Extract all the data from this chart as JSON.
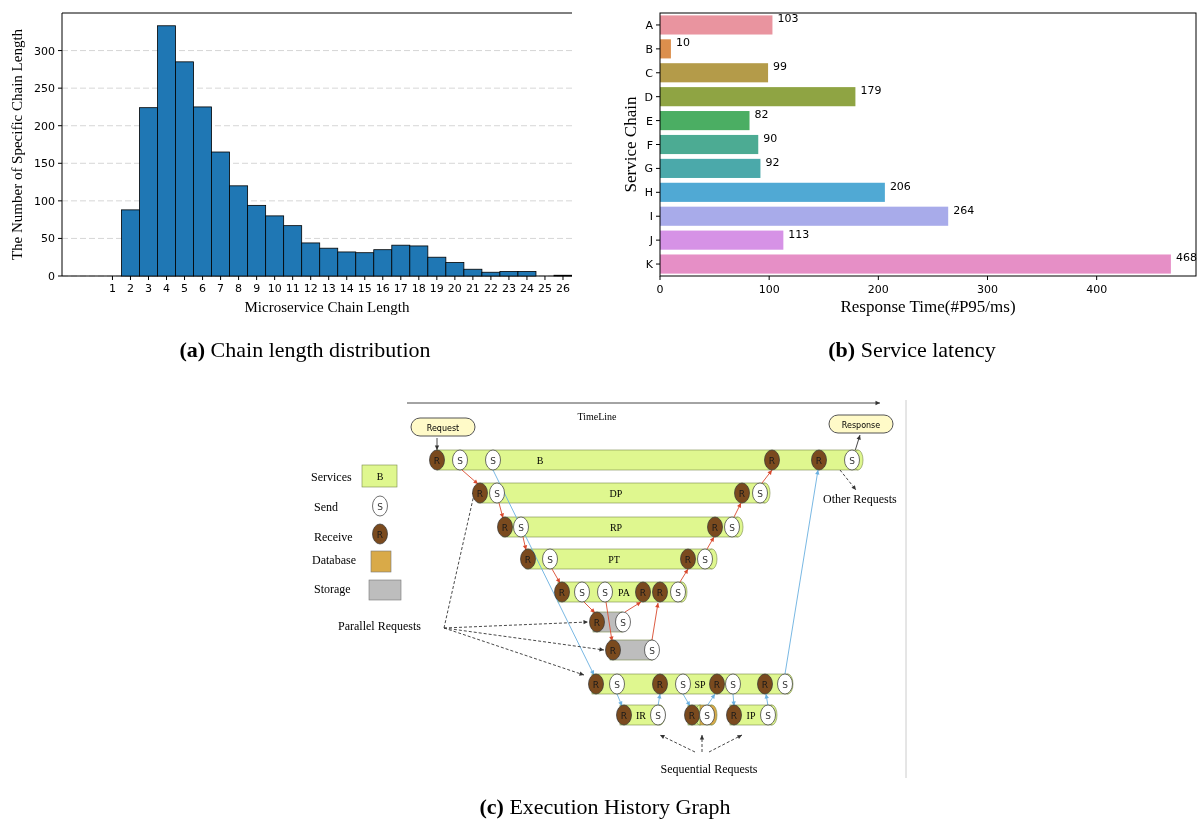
{
  "chart_data": [
    {
      "type": "histogram",
      "title": "(a) Chain length distribution",
      "xlabel": "Microservice Chain Length",
      "ylabel": "The Number of Specific Chain Length",
      "bins": [
        -0.5,
        0.5,
        1.5,
        2.5,
        3.5,
        4.5,
        5.5,
        6.5,
        7.5,
        8.5,
        9.5,
        10.5,
        11.5,
        12.5,
        13.5,
        14.5,
        15.5,
        16.5,
        17.5,
        18.5,
        19.5,
        20.5,
        21.5,
        22.5,
        23.5,
        24.5,
        25.5,
        26.5
      ],
      "values": [
        0,
        0,
        88,
        224,
        333,
        285,
        225,
        165,
        120,
        94,
        80,
        67,
        44,
        37,
        32,
        31,
        35,
        41,
        40,
        25,
        18,
        9,
        5,
        6,
        6,
        0,
        1
      ],
      "color": "#1f77b4",
      "xlim": [
        -1.8,
        26.5
      ],
      "ylim": [
        0,
        350
      ],
      "xticks": [
        1,
        2,
        3,
        4,
        5,
        6,
        7,
        8,
        9,
        10,
        11,
        12,
        13,
        14,
        15,
        16,
        17,
        18,
        19,
        20,
        21,
        22,
        23,
        24,
        25,
        26
      ],
      "yticks": [
        0,
        50,
        100,
        150,
        200,
        250,
        300
      ],
      "grid": "y"
    },
    {
      "type": "bar",
      "orientation": "horizontal",
      "title": "(b) Service latency",
      "xlabel": "Response Time(#P95/ms)",
      "ylabel": "Service Chain",
      "categories": [
        "A",
        "B",
        "C",
        "D",
        "E",
        "F",
        "G",
        "H",
        "I",
        "J",
        "K"
      ],
      "values": [
        103,
        10,
        99,
        179,
        82,
        90,
        92,
        206,
        264,
        113,
        468
      ],
      "colors": [
        "#e9949f",
        "#dc8f4d",
        "#b49b49",
        "#8fa443",
        "#4bae63",
        "#4cab93",
        "#4ba9aa",
        "#50a9d4",
        "#a8abea",
        "#d692e6",
        "#e68fc6"
      ],
      "xlim": [
        0,
        491
      ],
      "xticks": [
        0,
        100,
        200,
        300,
        400
      ],
      "data_labels": true
    },
    {
      "type": "other",
      "title": "(c) Execution History Graph",
      "annotations": [
        "TimeLine",
        "Request",
        "Response",
        "Services",
        "B",
        "Send",
        "S",
        "Receive",
        "R",
        "Database",
        "Storage",
        "Parallel Requests",
        "Other Requests",
        "Sequential Requests",
        "B",
        "DP",
        "RP",
        "PT",
        "PA",
        "SP",
        "IR",
        "IP"
      ]
    }
  ]
}
